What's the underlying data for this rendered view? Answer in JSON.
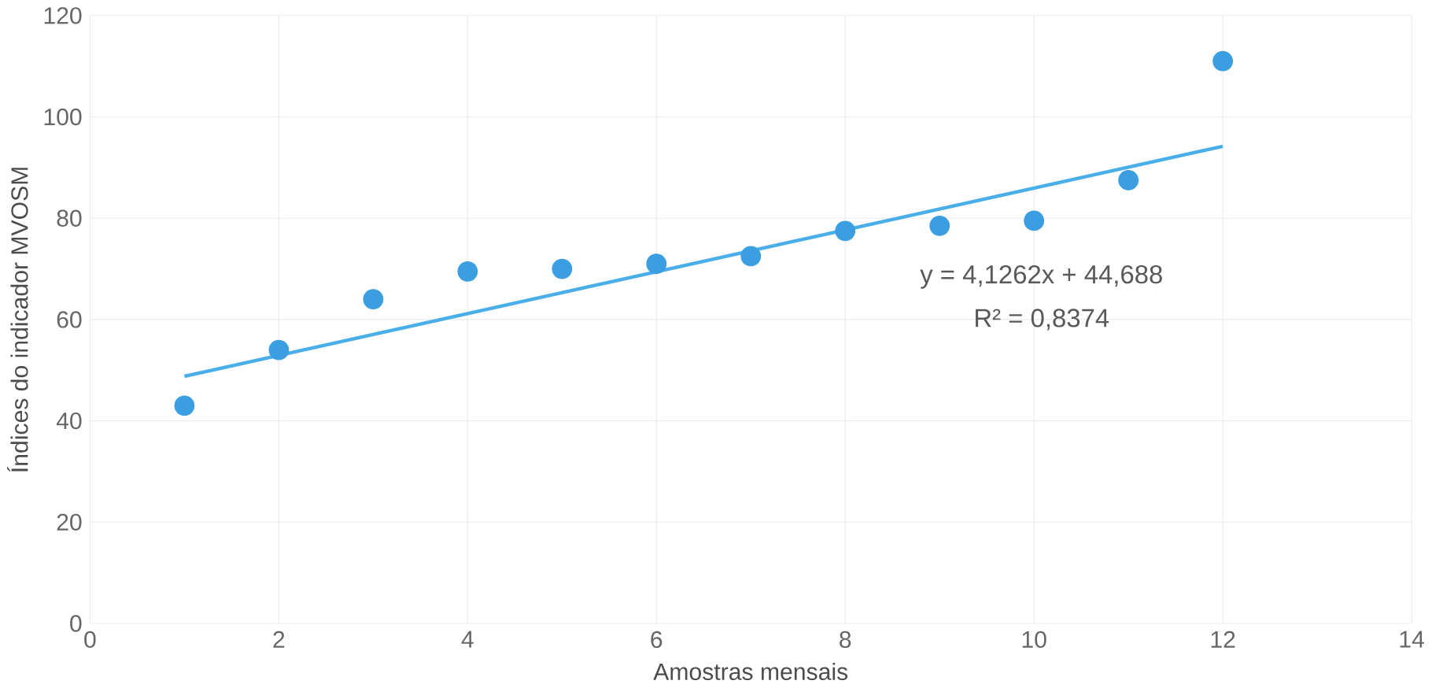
{
  "chart_data": {
    "type": "scatter",
    "xlabel": "Amostras mensais",
    "ylabel": "Índices do indicador MVOSM",
    "xlim": [
      0,
      14
    ],
    "ylim": [
      0,
      120
    ],
    "xticks": [
      0,
      2,
      4,
      6,
      8,
      10,
      12,
      14
    ],
    "yticks": [
      0,
      20,
      40,
      60,
      80,
      100,
      120
    ],
    "grid": true,
    "series": [
      {
        "color": "#3a9ee0",
        "marker": "circle",
        "x": [
          1,
          2,
          3,
          4,
          5,
          6,
          7,
          8,
          9,
          10,
          11,
          12
        ],
        "values": [
          43,
          54,
          64,
          69.5,
          70,
          71,
          72.5,
          77.5,
          78.5,
          79.5,
          87.5,
          111
        ]
      },
      {
        "type": "line",
        "color": "#4aaee8",
        "line_style": "solid",
        "x": [
          1,
          12
        ],
        "values": [
          48.8,
          94.2
        ]
      }
    ],
    "annotations": [
      "y = 4,1262x + 44,688",
      "R² = 0,8374"
    ]
  }
}
